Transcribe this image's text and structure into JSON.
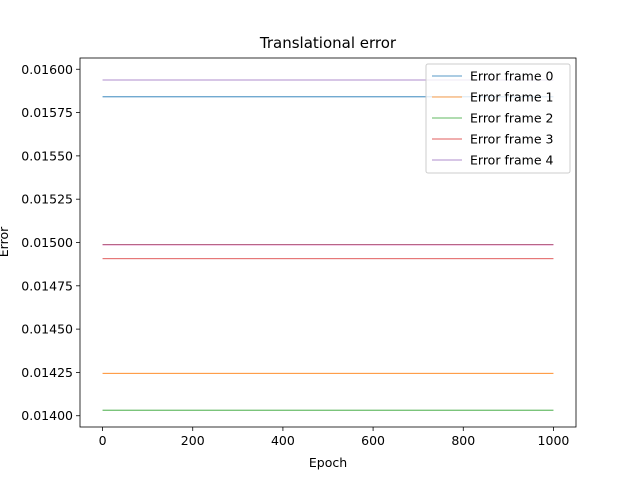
{
  "chart_data": {
    "type": "line",
    "title": "Translational error",
    "xlabel": "Epoch",
    "ylabel": "Error",
    "xlim": [
      -50,
      1050
    ],
    "ylim": [
      0.013935,
      0.016065
    ],
    "xticks": [
      0,
      200,
      400,
      600,
      800,
      1000
    ],
    "yticks": [
      0.014,
      0.01425,
      0.0145,
      0.01475,
      0.015,
      0.01525,
      0.0155,
      0.01575,
      0.016
    ],
    "ytick_labels": [
      "0.01400",
      "0.01425",
      "0.01450",
      "0.01475",
      "0.01500",
      "0.01525",
      "0.01550",
      "0.01575",
      "0.01600"
    ],
    "xtick_labels": [
      "0",
      "200",
      "400",
      "600",
      "800",
      "1000"
    ],
    "x": [
      0,
      1000
    ],
    "grid": false,
    "legend_position": "top-right",
    "series": [
      {
        "name": "Error frame 0",
        "color": "#1f77b4",
        "values": [
          0.015841,
          0.015841
        ]
      },
      {
        "name": "Error frame 1",
        "color": "#ff7f0e",
        "values": [
          0.014245,
          0.014245
        ]
      },
      {
        "name": "Error frame 2",
        "color": "#2ca02c",
        "values": [
          0.014032,
          0.014032
        ]
      },
      {
        "name": "Error frame 3",
        "color": "#d62728",
        "values": [
          0.014906,
          0.014906
        ]
      },
      {
        "name": "Error frame 4",
        "color": "#9467bd",
        "values": [
          0.015938,
          0.015938
        ]
      },
      {
        "color": "#8c564b",
        "values": [
          0.014989,
          0.014989
        ]
      },
      {
        "color": "#e377c2",
        "values": [
          0.014986,
          0.014986
        ]
      }
    ]
  }
}
